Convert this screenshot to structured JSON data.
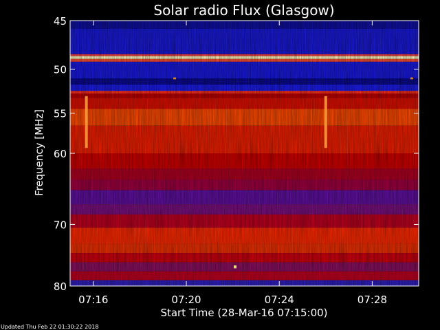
{
  "chart_data": {
    "type": "heatmap",
    "title": "Solar radio Flux (Glasgow)",
    "xlabel": "Start Time (28-Mar-16 07:15:00)",
    "ylabel": "Frequency [MHz]",
    "x_start": "07:15:00",
    "x_end": "07:30:00",
    "x_ticks": [
      {
        "label": "07:16",
        "minute": 16
      },
      {
        "label": "07:20",
        "minute": 20
      },
      {
        "label": "07:24",
        "minute": 24
      },
      {
        "label": "07:28",
        "minute": 28
      }
    ],
    "y_ticks": [
      45,
      50,
      55,
      60,
      70,
      80
    ],
    "ylim": [
      45,
      80
    ],
    "yscale": "log",
    "colormap": {
      "low": "#0000ff",
      "mid": "#ff0000",
      "high": "#ffff00"
    },
    "frequency_bands": [
      {
        "from": 45.0,
        "to": 45.8,
        "color": "#1010a0"
      },
      {
        "from": 45.8,
        "to": 48.4,
        "color": "#1a1ad8"
      },
      {
        "from": 48.4,
        "to": 48.6,
        "color": "#ff4040"
      },
      {
        "from": 48.6,
        "to": 48.9,
        "color": "#ffffc0"
      },
      {
        "from": 48.9,
        "to": 49.2,
        "color": "#ff5030"
      },
      {
        "from": 49.2,
        "to": 51.0,
        "color": "#1a1ae0"
      },
      {
        "from": 51.0,
        "to": 51.7,
        "color": "#0a0a90"
      },
      {
        "from": 51.7,
        "to": 52.4,
        "color": "#1c1ce8"
      },
      {
        "from": 52.4,
        "to": 52.7,
        "color": "#ff3020"
      },
      {
        "from": 52.7,
        "to": 53.2,
        "color": "#c00000"
      },
      {
        "from": 53.2,
        "to": 54.5,
        "color": "#e01000"
      },
      {
        "from": 54.5,
        "to": 56.5,
        "color": "#ff4a00"
      },
      {
        "from": 56.5,
        "to": 60.0,
        "color": "#f02000"
      },
      {
        "from": 60.0,
        "to": 62.0,
        "color": "#d00000"
      },
      {
        "from": 62.0,
        "to": 63.5,
        "color": "#b00020"
      },
      {
        "from": 63.5,
        "to": 65.0,
        "color": "#a00040"
      },
      {
        "from": 65.0,
        "to": 67.0,
        "color": "#6010a0"
      },
      {
        "from": 67.0,
        "to": 68.5,
        "color": "#7a1080"
      },
      {
        "from": 68.5,
        "to": 70.5,
        "color": "#c00020"
      },
      {
        "from": 70.5,
        "to": 73.0,
        "color": "#ff2a00"
      },
      {
        "from": 73.0,
        "to": 74.5,
        "color": "#f03000"
      },
      {
        "from": 74.5,
        "to": 76.0,
        "color": "#d00010"
      },
      {
        "from": 76.0,
        "to": 77.5,
        "color": "#8a1060"
      },
      {
        "from": 77.5,
        "to": 79.0,
        "color": "#c00020"
      },
      {
        "from": 79.0,
        "to": 80.0,
        "color": "#3020c0"
      }
    ],
    "bursts": [
      {
        "time_min": 15.7,
        "freq_from": 53.0,
        "freq_to": 59.3,
        "color": "#ffa040"
      },
      {
        "time_min": 26.0,
        "freq_from": 53.0,
        "freq_to": 59.3,
        "color": "#ffa040"
      },
      {
        "time_min": 22.1,
        "freq_from": 76.5,
        "freq_to": 77.0,
        "color": "#ffff80"
      },
      {
        "time_min": 19.5,
        "freq_from": 50.9,
        "freq_to": 51.1,
        "color": "#ffa000"
      },
      {
        "time_min": 29.7,
        "freq_from": 50.9,
        "freq_to": 51.1,
        "color": "#ffa000"
      }
    ]
  },
  "footer": {
    "updated_text": "Updated Thu Feb 22 01:30:22 2018"
  }
}
